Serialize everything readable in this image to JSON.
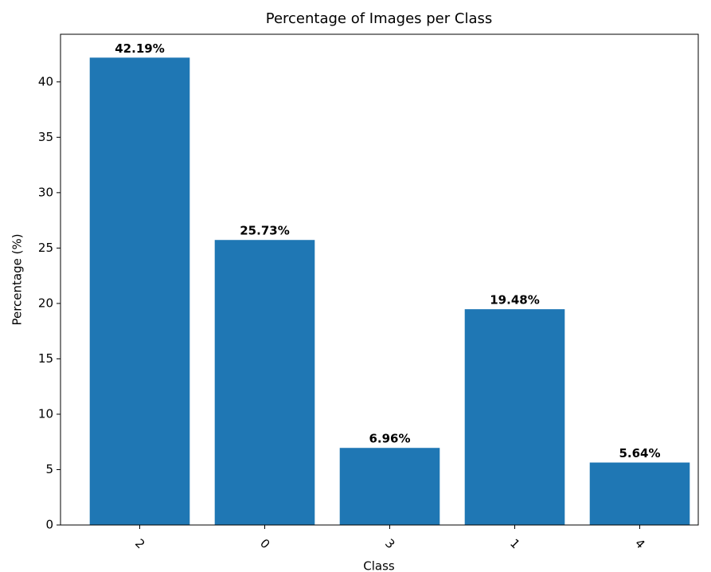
{
  "chart_data": {
    "type": "bar",
    "title": "Percentage of Images per Class",
    "xlabel": "Class",
    "ylabel": "Percentage (%)",
    "categories": [
      "2",
      "0",
      "3",
      "1",
      "4"
    ],
    "values": [
      42.19,
      25.73,
      6.96,
      19.48,
      5.64
    ],
    "value_labels": [
      "42.19%",
      "25.73%",
      "6.96%",
      "19.48%",
      "5.64%"
    ],
    "color": "#1f77b4",
    "ylim": [
      0,
      44.3
    ],
    "yticks": [
      0,
      5,
      10,
      15,
      20,
      25,
      30,
      35,
      40
    ],
    "grid": false
  }
}
